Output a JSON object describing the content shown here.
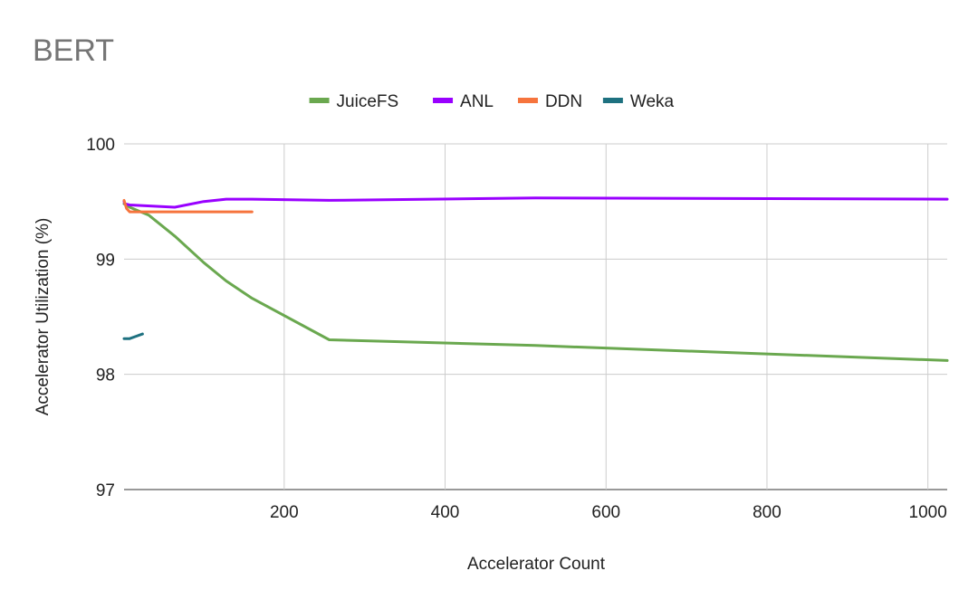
{
  "chart_data": {
    "type": "line",
    "title": "BERT",
    "xlabel": "Accelerator Count",
    "ylabel": "Accelerator Utilization (%)",
    "xlim": [
      1,
      1024
    ],
    "ylim": [
      97,
      100
    ],
    "x_ticks": [
      200,
      400,
      600,
      800,
      1000
    ],
    "y_ticks": [
      97,
      98,
      99,
      100
    ],
    "grid": true,
    "legend_position": "top",
    "series": [
      {
        "name": "JuiceFS",
        "color": "#6aa84f",
        "points": [
          [
            1,
            99.48
          ],
          [
            8,
            99.45
          ],
          [
            32,
            99.38
          ],
          [
            64,
            99.2
          ],
          [
            100,
            98.97
          ],
          [
            128,
            98.81
          ],
          [
            160,
            98.66
          ],
          [
            256,
            98.3
          ],
          [
            512,
            98.25
          ],
          [
            1024,
            98.12
          ]
        ]
      },
      {
        "name": "ANL",
        "color": "#9900ff",
        "points": [
          [
            1,
            99.5
          ],
          [
            2,
            99.48
          ],
          [
            8,
            99.47
          ],
          [
            64,
            99.45
          ],
          [
            100,
            99.5
          ],
          [
            128,
            99.52
          ],
          [
            160,
            99.52
          ],
          [
            256,
            99.51
          ],
          [
            512,
            99.53
          ],
          [
            1024,
            99.52
          ]
        ]
      },
      {
        "name": "DDN",
        "color": "#f6743d",
        "points": [
          [
            1,
            99.51
          ],
          [
            4,
            99.44
          ],
          [
            8,
            99.41
          ],
          [
            160,
            99.41
          ]
        ]
      },
      {
        "name": "Weka",
        "color": "#1e7180",
        "points": [
          [
            1,
            98.31
          ],
          [
            8,
            98.31
          ],
          [
            16,
            98.33
          ],
          [
            24,
            98.35
          ]
        ]
      }
    ]
  }
}
